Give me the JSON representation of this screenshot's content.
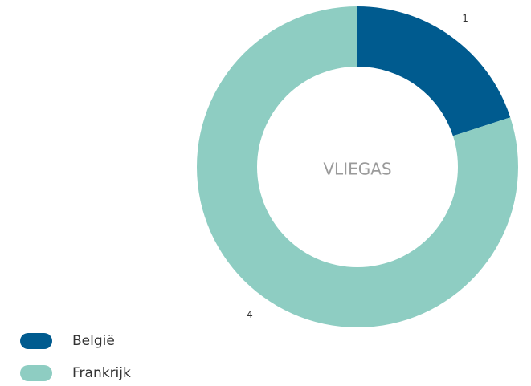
{
  "chart_data": {
    "type": "donut",
    "center_label": "VLIEGAS",
    "categories": [
      "België",
      "Frankrijk"
    ],
    "values": [
      1,
      4
    ],
    "colors": [
      "#005b8f",
      "#8ecdc2"
    ],
    "legend": "bottom-left"
  }
}
